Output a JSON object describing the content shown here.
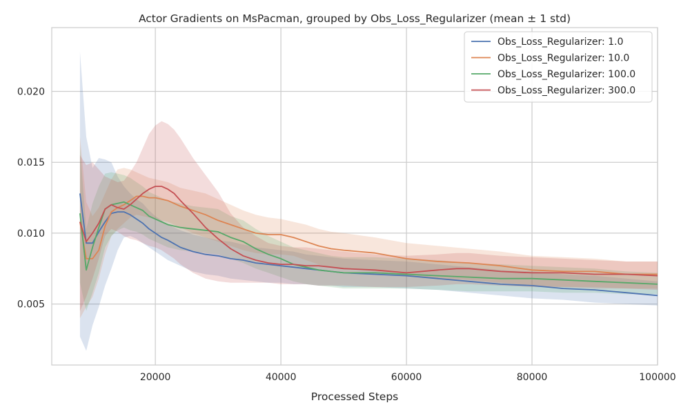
{
  "chart_data": {
    "type": "line",
    "title": "Actor Gradients on MsPacman, grouped by Obs_Loss_Regularizer (mean ± 1 std)",
    "xlabel": "Processed Steps",
    "ylabel": "",
    "xlim": [
      3500,
      100000
    ],
    "ylim": [
      0.0007,
      0.0245
    ],
    "x_ticks": [
      20000,
      40000,
      60000,
      80000,
      100000
    ],
    "x_tick_labels": [
      "20000",
      "40000",
      "60000",
      "80000",
      "100000"
    ],
    "y_ticks": [
      0.005,
      0.01,
      0.015,
      0.02
    ],
    "y_tick_labels": [
      "0.005",
      "0.010",
      "0.015",
      "0.020"
    ],
    "grid": true,
    "legend_position": "top-right",
    "series": [
      {
        "name": "Obs_Loss_Regularizer: 1.0",
        "color": "#4c72b0",
        "x": [
          8000,
          9000,
          10000,
          11000,
          12000,
          13000,
          14000,
          15000,
          16000,
          17000,
          18000,
          19000,
          20000,
          21000,
          22000,
          24000,
          26000,
          28000,
          30000,
          32000,
          34000,
          36000,
          38000,
          40000,
          42000,
          44000,
          46000,
          48000,
          50000,
          55000,
          60000,
          65000,
          70000,
          75000,
          80000,
          85000,
          90000,
          95000,
          100000
        ],
        "y": [
          0.0128,
          0.0093,
          0.0093,
          0.0101,
          0.0108,
          0.0114,
          0.0115,
          0.0115,
          0.0113,
          0.011,
          0.0107,
          0.0103,
          0.01,
          0.0097,
          0.0095,
          0.009,
          0.0087,
          0.0085,
          0.0084,
          0.0082,
          0.0081,
          0.0079,
          0.0078,
          0.0077,
          0.0076,
          0.0075,
          0.0074,
          0.0073,
          0.0072,
          0.0071,
          0.007,
          0.0068,
          0.0066,
          0.0064,
          0.0063,
          0.0061,
          0.006,
          0.0058,
          0.0056
        ],
        "lower": [
          0.0027,
          0.0017,
          0.0035,
          0.0048,
          0.0063,
          0.0075,
          0.0088,
          0.0097,
          0.0098,
          0.0096,
          0.0093,
          0.009,
          0.0087,
          0.0084,
          0.0081,
          0.0077,
          0.0073,
          0.0071,
          0.007,
          0.0068,
          0.0067,
          0.0066,
          0.0065,
          0.0065,
          0.0064,
          0.0064,
          0.0063,
          0.0063,
          0.0062,
          0.0062,
          0.0061,
          0.006,
          0.0058,
          0.0056,
          0.0054,
          0.0053,
          0.0051,
          0.005,
          0.0049
        ],
        "upper": [
          0.0228,
          0.0168,
          0.0146,
          0.0153,
          0.0152,
          0.015,
          0.014,
          0.0133,
          0.0128,
          0.0124,
          0.0121,
          0.0116,
          0.0112,
          0.0109,
          0.0106,
          0.0102,
          0.0099,
          0.0097,
          0.0095,
          0.0094,
          0.0092,
          0.009,
          0.0089,
          0.0088,
          0.0087,
          0.0085,
          0.0084,
          0.0083,
          0.0082,
          0.0081,
          0.008,
          0.0078,
          0.0076,
          0.0074,
          0.0073,
          0.0071,
          0.007,
          0.0068,
          0.0066
        ]
      },
      {
        "name": "Obs_Loss_Regularizer: 10.0",
        "color": "#dd8452",
        "x": [
          8000,
          9000,
          10000,
          11000,
          12000,
          13000,
          14000,
          15000,
          16000,
          17000,
          18000,
          19000,
          20000,
          21000,
          22000,
          24000,
          26000,
          28000,
          30000,
          32000,
          34000,
          36000,
          38000,
          40000,
          42000,
          44000,
          46000,
          48000,
          50000,
          55000,
          60000,
          65000,
          70000,
          75000,
          80000,
          85000,
          90000,
          95000,
          100000
        ],
        "y": [
          0.0108,
          0.0082,
          0.0082,
          0.0088,
          0.0105,
          0.0115,
          0.0118,
          0.012,
          0.0123,
          0.0126,
          0.0126,
          0.0125,
          0.0125,
          0.0124,
          0.0123,
          0.0119,
          0.0116,
          0.0113,
          0.0109,
          0.0106,
          0.0103,
          0.01,
          0.0099,
          0.0099,
          0.0097,
          0.0094,
          0.0091,
          0.0089,
          0.0088,
          0.0086,
          0.0082,
          0.008,
          0.0079,
          0.0077,
          0.0074,
          0.0073,
          0.0073,
          0.0071,
          0.0071
        ],
        "lower": [
          0.004,
          0.0048,
          0.0055,
          0.0068,
          0.0085,
          0.0098,
          0.0103,
          0.0107,
          0.0111,
          0.0113,
          0.0112,
          0.0111,
          0.011,
          0.0109,
          0.0108,
          0.0104,
          0.01,
          0.0097,
          0.0094,
          0.0091,
          0.0088,
          0.0086,
          0.0085,
          0.0085,
          0.0084,
          0.0081,
          0.0078,
          0.0076,
          0.0075,
          0.0073,
          0.007,
          0.0068,
          0.0067,
          0.0065,
          0.0063,
          0.0062,
          0.0062,
          0.0061,
          0.0061
        ],
        "upper": [
          0.0168,
          0.0122,
          0.0112,
          0.0118,
          0.0128,
          0.0138,
          0.0145,
          0.0146,
          0.0145,
          0.0143,
          0.0141,
          0.0139,
          0.0138,
          0.0137,
          0.0136,
          0.0132,
          0.013,
          0.0128,
          0.0124,
          0.012,
          0.0116,
          0.0113,
          0.0111,
          0.011,
          0.0108,
          0.0106,
          0.0103,
          0.0101,
          0.01,
          0.0097,
          0.0093,
          0.0091,
          0.0089,
          0.0087,
          0.0084,
          0.0083,
          0.0082,
          0.008,
          0.008
        ]
      },
      {
        "name": "Obs_Loss_Regularizer: 100.0",
        "color": "#55a868",
        "x": [
          8000,
          9000,
          10000,
          11000,
          12000,
          13000,
          14000,
          15000,
          16000,
          17000,
          18000,
          19000,
          20000,
          21000,
          22000,
          24000,
          26000,
          28000,
          30000,
          32000,
          34000,
          36000,
          38000,
          40000,
          42000,
          44000,
          46000,
          48000,
          50000,
          55000,
          60000,
          65000,
          70000,
          75000,
          80000,
          85000,
          90000,
          95000,
          100000
        ],
        "y": [
          0.0114,
          0.0074,
          0.009,
          0.0104,
          0.0117,
          0.012,
          0.0121,
          0.0122,
          0.012,
          0.0118,
          0.0116,
          0.0112,
          0.011,
          0.0108,
          0.0106,
          0.0104,
          0.0103,
          0.0102,
          0.0101,
          0.0097,
          0.0094,
          0.0089,
          0.0085,
          0.0082,
          0.0078,
          0.0076,
          0.0074,
          0.0073,
          0.0072,
          0.0072,
          0.0071,
          0.007,
          0.0069,
          0.0068,
          0.0068,
          0.0067,
          0.0066,
          0.0065,
          0.0064
        ],
        "lower": [
          0.0065,
          0.0045,
          0.0058,
          0.0072,
          0.009,
          0.0098,
          0.0102,
          0.0104,
          0.0102,
          0.0101,
          0.0099,
          0.0096,
          0.0094,
          0.0092,
          0.009,
          0.0088,
          0.0087,
          0.0086,
          0.0085,
          0.0082,
          0.0079,
          0.0075,
          0.0072,
          0.0069,
          0.0066,
          0.0064,
          0.0063,
          0.0062,
          0.0061,
          0.0061,
          0.0061,
          0.006,
          0.0059,
          0.0059,
          0.0059,
          0.0058,
          0.0058,
          0.0057,
          0.0057
        ],
        "upper": [
          0.0162,
          0.0103,
          0.0121,
          0.0133,
          0.0142,
          0.0143,
          0.0142,
          0.0141,
          0.0139,
          0.0136,
          0.0133,
          0.0129,
          0.0127,
          0.0125,
          0.0123,
          0.0121,
          0.0119,
          0.0118,
          0.0117,
          0.0112,
          0.0109,
          0.0103,
          0.0098,
          0.0094,
          0.009,
          0.0088,
          0.0086,
          0.0084,
          0.0083,
          0.0083,
          0.0082,
          0.0081,
          0.0079,
          0.0078,
          0.0077,
          0.0076,
          0.0075,
          0.0073,
          0.0072
        ]
      },
      {
        "name": "Obs_Loss_Regularizer: 300.0",
        "color": "#c44e52",
        "x": [
          8000,
          9000,
          10000,
          11000,
          12000,
          13000,
          14000,
          15000,
          16000,
          17000,
          18000,
          19000,
          20000,
          21000,
          22000,
          23000,
          24000,
          26000,
          28000,
          30000,
          32000,
          34000,
          36000,
          38000,
          40000,
          42000,
          44000,
          46000,
          48000,
          50000,
          55000,
          60000,
          65000,
          68000,
          70000,
          75000,
          80000,
          85000,
          90000,
          95000,
          100000
        ],
        "y": [
          0.0108,
          0.0094,
          0.01,
          0.0107,
          0.0117,
          0.012,
          0.0118,
          0.0117,
          0.012,
          0.0124,
          0.0128,
          0.0131,
          0.0133,
          0.0133,
          0.0131,
          0.0128,
          0.0123,
          0.0114,
          0.0104,
          0.0096,
          0.0089,
          0.0084,
          0.0081,
          0.0079,
          0.0078,
          0.0078,
          0.0077,
          0.0077,
          0.0076,
          0.0075,
          0.0074,
          0.0072,
          0.0074,
          0.0075,
          0.0075,
          0.0073,
          0.0072,
          0.0072,
          0.0071,
          0.0071,
          0.007
        ],
        "lower": [
          0.0045,
          0.0055,
          0.0068,
          0.0082,
          0.0098,
          0.0103,
          0.0101,
          0.0098,
          0.0096,
          0.0095,
          0.0093,
          0.0091,
          0.009,
          0.0088,
          0.0085,
          0.0082,
          0.0078,
          0.0072,
          0.0068,
          0.0066,
          0.0065,
          0.0065,
          0.0065,
          0.0065,
          0.0064,
          0.0064,
          0.0064,
          0.0063,
          0.0063,
          0.0063,
          0.0062,
          0.0062,
          0.0063,
          0.0064,
          0.0064,
          0.0063,
          0.0062,
          0.0062,
          0.0061,
          0.0061,
          0.006
        ],
        "upper": [
          0.0155,
          0.0148,
          0.015,
          0.0145,
          0.014,
          0.0138,
          0.0136,
          0.0137,
          0.0143,
          0.015,
          0.016,
          0.017,
          0.0176,
          0.0179,
          0.0177,
          0.0173,
          0.0167,
          0.0153,
          0.0141,
          0.0129,
          0.0114,
          0.0104,
          0.0098,
          0.0093,
          0.0091,
          0.009,
          0.009,
          0.0089,
          0.0088,
          0.0087,
          0.0085,
          0.0084,
          0.0085,
          0.0086,
          0.0086,
          0.0084,
          0.0083,
          0.0082,
          0.0081,
          0.008,
          0.008
        ]
      }
    ]
  }
}
